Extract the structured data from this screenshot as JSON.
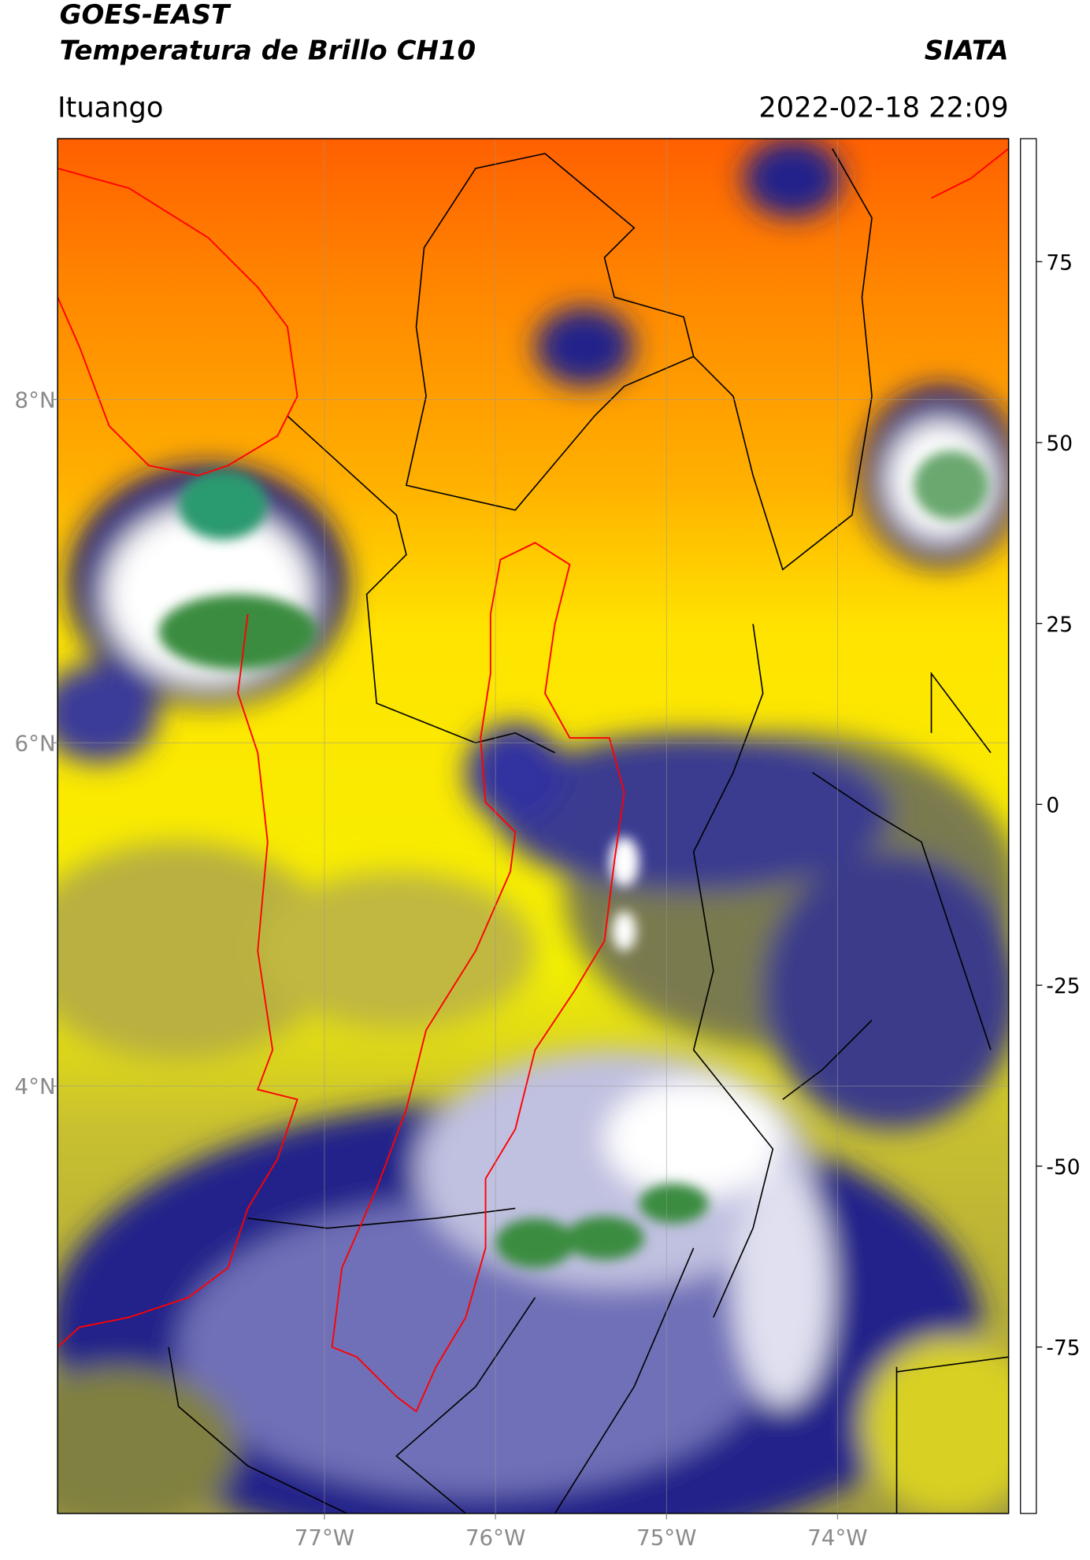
{
  "header": {
    "title": "GOES-EAST",
    "subtitle": "Temperatura de Brillo CH10",
    "source": "SIATA",
    "location": "Ituango",
    "datetime": "2022-02-18 22:09"
  },
  "map": {
    "xlim": [
      -78.56,
      -73.0
    ],
    "ylim": [
      1.51,
      9.52
    ],
    "xticks": [
      {
        "value": -77,
        "label": "77°W"
      },
      {
        "value": -76,
        "label": "76°W"
      },
      {
        "value": -75,
        "label": "75°W"
      },
      {
        "value": -74,
        "label": "74°W"
      }
    ],
    "yticks": [
      {
        "value": 8,
        "label": "8°N"
      },
      {
        "value": 6,
        "label": "6°N"
      },
      {
        "value": 4,
        "label": "4°N"
      }
    ],
    "grid": true
  },
  "colorbar": {
    "lim": [
      -98,
      92
    ],
    "ticks": [
      -75,
      -50,
      -25,
      0,
      25,
      50,
      75
    ],
    "stops": [
      {
        "value": -98,
        "color": "#ffffff"
      },
      {
        "value": -93,
        "color": "#ffffff"
      },
      {
        "value": -92,
        "color": "#00e5e5"
      },
      {
        "value": -80,
        "color": "#1fa07a"
      },
      {
        "value": -70,
        "color": "#2e8b3a"
      },
      {
        "value": -62,
        "color": "#8cc08c"
      },
      {
        "value": -55,
        "color": "#ffffff"
      },
      {
        "value": -45,
        "color": "#9090c8"
      },
      {
        "value": -35,
        "color": "#3a3a9a"
      },
      {
        "value": -28,
        "color": "#101080"
      },
      {
        "value": -22,
        "color": "#808040"
      },
      {
        "value": -15,
        "color": "#e0e000"
      },
      {
        "value": -8,
        "color": "#ffff00"
      },
      {
        "value": 0,
        "color": "#ffa500"
      },
      {
        "value": 7,
        "color": "#ff0000"
      },
      {
        "value": 8,
        "color": "#000000"
      },
      {
        "value": 92,
        "color": "#000000"
      }
    ]
  }
}
